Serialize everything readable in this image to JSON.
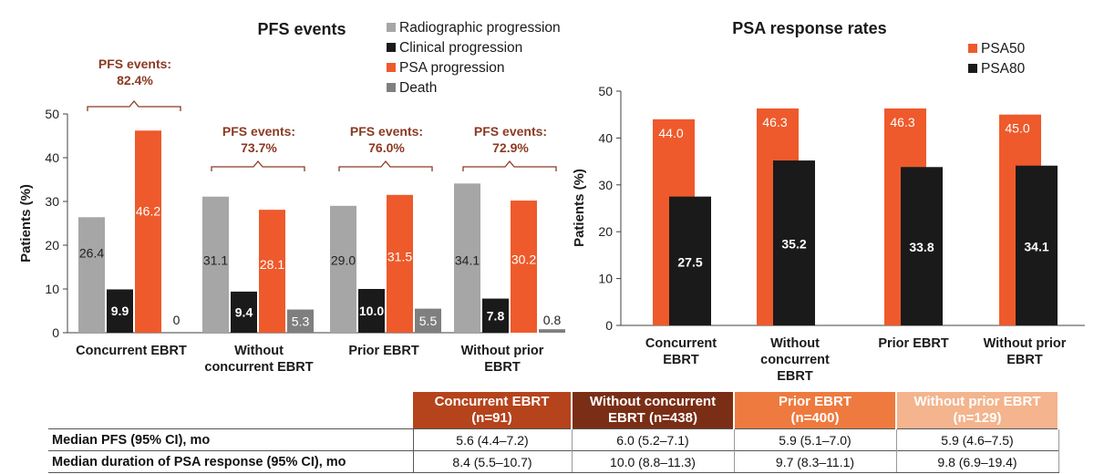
{
  "colors": {
    "radiographic": "#a6a6a6",
    "clinical": "#1a1a1a",
    "psa": "#ee5a2b",
    "death": "#7f7f7f",
    "brace": "#8b3a22",
    "axis": "#404040",
    "col1": "#b5431c",
    "col2": "#7a2e16",
    "col3": "#ee7a3f",
    "col4": "#f3b48e"
  },
  "chart_data": [
    {
      "type": "bar",
      "title": "PFS events",
      "ylabel": "Patients (%)",
      "ylim": [
        0,
        50
      ],
      "yticks": [
        0,
        10,
        20,
        30,
        40,
        50
      ],
      "categories": [
        "Concurrent EBRT",
        "Without concurrent EBRT",
        "Prior EBRT",
        "Without prior EBRT"
      ],
      "series": [
        {
          "name": "Radiographic progression",
          "values": [
            26.4,
            31.1,
            29.0,
            34.1
          ],
          "labels": [
            "26.4",
            "31.1",
            "29.0",
            "34.1"
          ]
        },
        {
          "name": "Clinical progression",
          "values": [
            9.9,
            9.4,
            10.0,
            7.8
          ],
          "labels": [
            "9.9",
            "9.4",
            "10.0",
            "7.8"
          ]
        },
        {
          "name": "PSA progression",
          "values": [
            46.2,
            28.1,
            31.5,
            30.2
          ],
          "labels": [
            "46.2",
            "28.1",
            "31.5",
            "30.2"
          ]
        },
        {
          "name": "Death",
          "values": [
            0,
            5.3,
            5.5,
            0.8
          ],
          "labels": [
            "0",
            "5.3",
            "5.5",
            "0.8"
          ]
        }
      ],
      "annotations": [
        {
          "label": "PFS events:",
          "value": "82.4%"
        },
        {
          "label": "PFS events:",
          "value": "73.7%"
        },
        {
          "label": "PFS events:",
          "value": "76.0%"
        },
        {
          "label": "PFS events:",
          "value": "72.9%"
        }
      ],
      "legend_position": "top-right"
    },
    {
      "type": "bar",
      "title": "PSA response rates",
      "ylabel": "Patients (%)",
      "ylim": [
        0,
        50
      ],
      "yticks": [
        0,
        10,
        20,
        30,
        40,
        50
      ],
      "categories": [
        "Concurrent EBRT",
        "Without concurrent EBRT",
        "Prior EBRT",
        "Without prior EBRT"
      ],
      "series": [
        {
          "name": "PSA50",
          "values": [
            44.0,
            46.3,
            46.3,
            45.0
          ],
          "labels": [
            "44.0",
            "46.3",
            "46.3",
            "45.0"
          ]
        },
        {
          "name": "PSA80",
          "values": [
            27.5,
            35.2,
            33.8,
            34.1
          ],
          "labels": [
            "27.5",
            "35.2",
            "33.8",
            "34.1"
          ]
        }
      ],
      "legend_position": "top-right"
    },
    {
      "type": "table",
      "columns": [
        "Concurrent EBRT (n=91)",
        "Without concurrent EBRT (n=438)",
        "Prior EBRT (n=400)",
        "Without prior EBRT (n=129)"
      ],
      "rows": [
        {
          "label": "Median PFS (95% CI), mo",
          "cells": [
            "5.6 (4.4–7.2)",
            "6.0 (5.2–7.1)",
            "5.9 (5.1–7.0)",
            "5.9 (4.6–7.5)"
          ]
        },
        {
          "label": "Median duration of PSA response (95% CI), mo",
          "cells": [
            "8.4 (5.5–10.7)",
            "10.0 (8.8–11.3)",
            "9.7 (8.3–11.1)",
            "9.8 (6.9–19.4)"
          ]
        }
      ]
    }
  ],
  "left_xlabels": [
    [
      "Concurrent EBRT"
    ],
    [
      "Without",
      "concurrent EBRT"
    ],
    [
      "Prior EBRT"
    ],
    [
      "Without prior",
      "EBRT"
    ]
  ],
  "right_xlabels": [
    [
      "Concurrent",
      "EBRT"
    ],
    [
      "Without",
      "concurrent",
      "EBRT"
    ],
    [
      "Prior EBRT"
    ],
    [
      "Without prior",
      "EBRT"
    ]
  ],
  "table": {
    "headers": [
      {
        "line1": "Concurrent EBRT",
        "line2": "(n=91)"
      },
      {
        "line1": "Without concurrent",
        "line2": "EBRT (n=438)"
      },
      {
        "line1": "Prior EBRT",
        "line2": "(n=400)"
      },
      {
        "line1": "Without prior EBRT",
        "line2": "(n=129)"
      }
    ],
    "rows": [
      {
        "label": "Median PFS (95% CI), mo",
        "cells": [
          "5.6 (4.4–7.2)",
          "6.0 (5.2–7.1)",
          "5.9 (5.1–7.0)",
          "5.9 (4.6–7.5)"
        ]
      },
      {
        "label": "Median duration of PSA response (95% CI), mo",
        "cells": [
          "8.4 (5.5–10.7)",
          "10.0 (8.8–11.3)",
          "9.7 (8.3–11.1)",
          "9.8 (6.9–19.4)"
        ]
      }
    ]
  }
}
